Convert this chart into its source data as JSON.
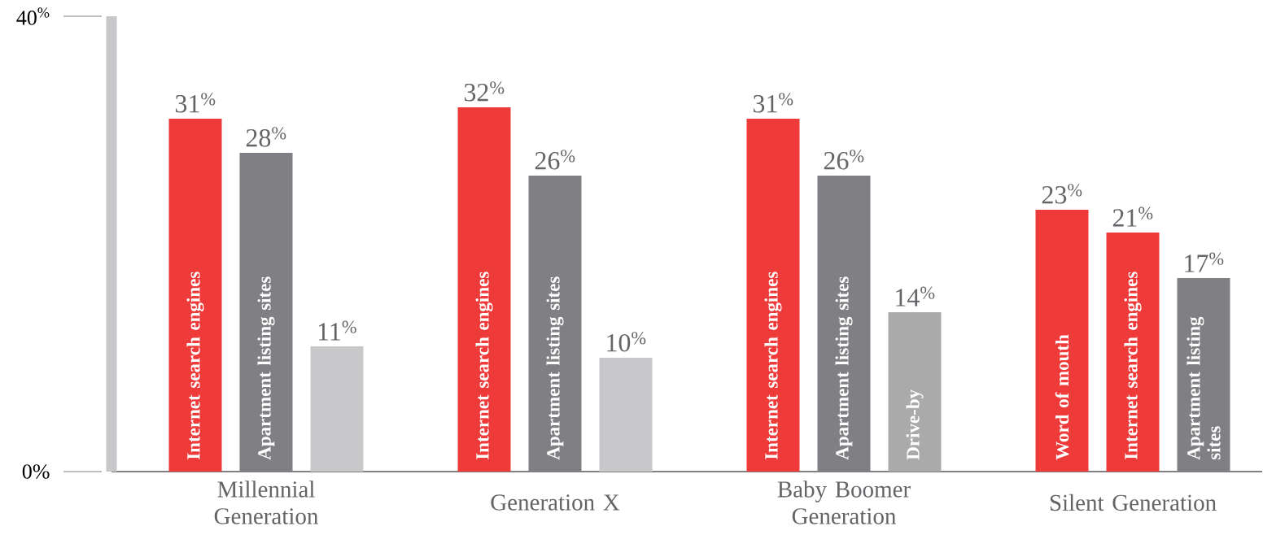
{
  "chart_data": {
    "type": "bar",
    "categories": [
      "Millennial Generation",
      "Generation X",
      "Baby Boomer Generation",
      "Silent Generation"
    ],
    "series": [
      {
        "colors": [
          "#ef3a3a",
          "#ef3a3a",
          "#ef3a3a",
          "#ef3a3a"
        ],
        "values": [
          31,
          32,
          31,
          23
        ],
        "value_labels": [
          "31$^{%}$",
          "32$^{%}$",
          "31$^{%}$",
          "23$^{%}$"
        ]
      },
      {
        "colors": [
          "#808084",
          "#808084",
          "#808084",
          "#ef3a3a"
        ],
        "values": [
          28,
          26,
          26,
          21
        ],
        "value_labels": [
          "28$^{%}$",
          "26$^{%}$",
          "26$^{%}$",
          "21$^{%}$"
        ]
      },
      {
        "colors": [
          "#c8c8ca",
          "#c8c8ca",
          "#aaaaaa",
          "#808084"
        ],
        "values": [
          11,
          10,
          14,
          17
        ],
        "value_labels": [
          "11$^{%}$",
          "10$^{%}$",
          "14$^{%}$",
          "17$^{%}$"
        ]
      }
    ],
    "ylim": [
      0,
      40
    ],
    "yticks": [
      {
        "value": 0,
        "label": "0%"
      },
      {
        "value": 40,
        "label": "40$^{%}$"
      }
    ],
    "annotations": [
      "Internet search engines",
      "Apartment listing sites",
      null,
      "Internet search engines",
      "Apartment listing sites",
      null,
      "Internet search engines",
      "Apartment listing sites",
      "Drive-by",
      "Word of mouth",
      "Internet search engines",
      "Apartment listing sites"
    ]
  }
}
